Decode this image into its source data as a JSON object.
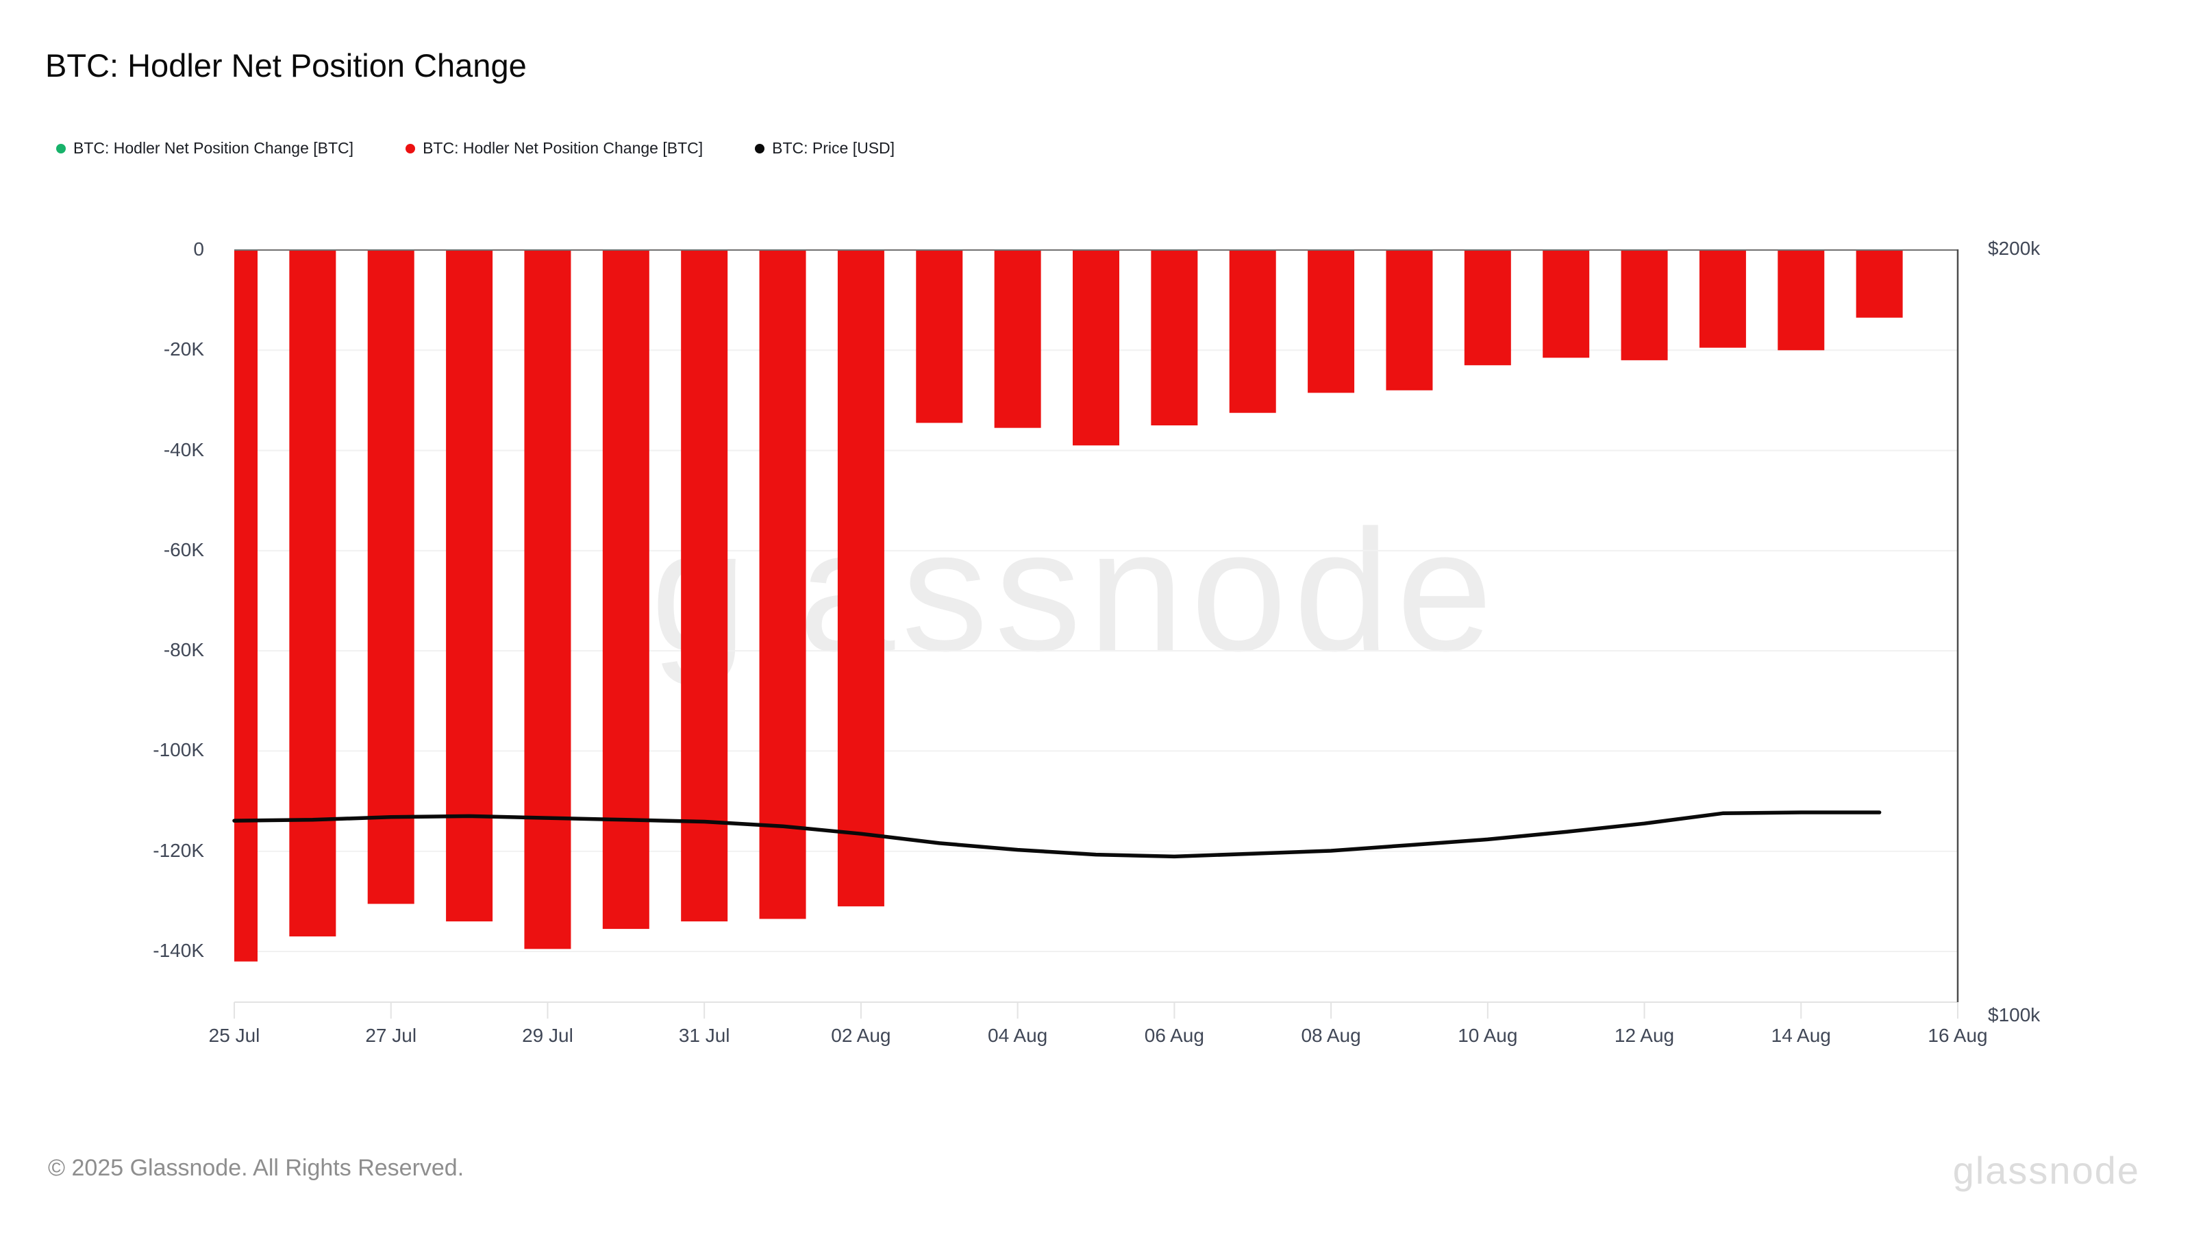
{
  "title": "BTC: Hodler Net Position Change",
  "legend": [
    {
      "label": "BTC: Hodler Net Position Change [BTC]",
      "color": "#17b26a"
    },
    {
      "label": "BTC: Hodler Net Position Change [BTC]",
      "color": "#ec1111"
    },
    {
      "label": "BTC: Price [USD]",
      "color": "#0a0a0a"
    }
  ],
  "watermark": "glassnode",
  "footer": {
    "copyright": "© 2025 Glassnode. All Rights Reserved.",
    "brand": "glassnode"
  },
  "chart_data": {
    "type": "bar",
    "title": "BTC: Hodler Net Position Change",
    "categories": [
      "25 Jul",
      "26 Jul",
      "27 Jul",
      "28 Jul",
      "29 Jul",
      "30 Jul",
      "31 Jul",
      "01 Aug",
      "02 Aug",
      "03 Aug",
      "04 Aug",
      "05 Aug",
      "06 Aug",
      "07 Aug",
      "08 Aug",
      "09 Aug",
      "10 Aug",
      "11 Aug",
      "12 Aug",
      "13 Aug",
      "14 Aug",
      "15 Aug"
    ],
    "series": [
      {
        "name": "BTC: Hodler Net Position Change [BTC]",
        "type": "bar",
        "unit": "BTC",
        "color": "#ec1111",
        "axis": "left",
        "values": [
          -142000,
          -137000,
          -130500,
          -134000,
          -139500,
          -135500,
          -134000,
          -133500,
          -131000,
          -34500,
          -35500,
          -39000,
          -35000,
          -32500,
          -28500,
          -28000,
          -23000,
          -21500,
          -22000,
          -19500,
          -20000,
          -13500
        ]
      },
      {
        "name": "BTC: Price [USD]",
        "type": "line",
        "unit": "USD",
        "color": "#0a0a0a",
        "axis": "right",
        "values": [
          119300,
          119400,
          119700,
          119800,
          119600,
          119400,
          119200,
          118700,
          117900,
          116900,
          116200,
          115700,
          115500,
          115800,
          116100,
          116700,
          117300,
          118100,
          119000,
          120100,
          120200,
          120200
        ]
      }
    ],
    "y_axis_left": {
      "tick_labels": [
        "0",
        "-20K",
        "-40K",
        "-60K",
        "-80K",
        "-100K",
        "-120K",
        "-140K"
      ],
      "tick_values": [
        0,
        -20000,
        -40000,
        -60000,
        -80000,
        -100000,
        -120000,
        -140000
      ],
      "range": [
        -150000,
        0
      ],
      "grid": true
    },
    "y_axis_right": {
      "tick_labels": [
        "$200k",
        "$100k"
      ],
      "tick_values": [
        200000,
        100000
      ],
      "scale": "log",
      "range": [
        100000,
        200000
      ]
    },
    "x_axis": {
      "tick_labels": [
        "25 Jul",
        "27 Jul",
        "29 Jul",
        "31 Jul",
        "02 Aug",
        "04 Aug",
        "06 Aug",
        "08 Aug",
        "10 Aug",
        "12 Aug",
        "14 Aug",
        "16 Aug"
      ],
      "tick_day_indices": [
        0,
        2,
        4,
        6,
        8,
        10,
        12,
        14,
        16,
        18,
        20,
        22
      ]
    },
    "legend_position": "top-left",
    "grid": "horizontal-only"
  }
}
